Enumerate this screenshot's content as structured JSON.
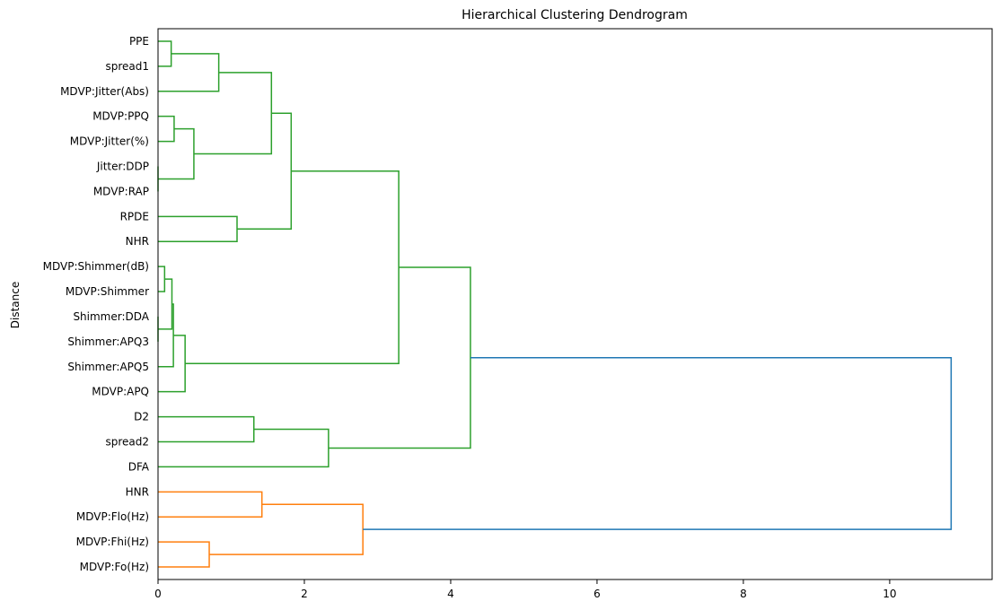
{
  "chart_data": {
    "type": "dendrogram",
    "title": "Hierarchical Clustering Dendrogram",
    "ylabel": "Distance",
    "xlabel": "",
    "orientation": "left",
    "xlim": [
      0,
      11.4
    ],
    "xticks": [
      0,
      2,
      4,
      6,
      8,
      10
    ],
    "colors": {
      "group1": "#2ca02c",
      "group2": "#ff7f0e",
      "root": "#1f77b4"
    },
    "leaves": [
      "PPE",
      "spread1",
      "MDVP:Jitter(Abs)",
      "MDVP:PPQ",
      "MDVP:Jitter(%)",
      "Jitter:DDP",
      "MDVP:RAP",
      "RPDE",
      "NHR",
      "MDVP:Shimmer(dB)",
      "MDVP:Shimmer",
      "Shimmer:DDA",
      "Shimmer:APQ3",
      "Shimmer:APQ5",
      "MDVP:APQ",
      "D2",
      "spread2",
      "DFA",
      "HNR",
      "MDVP:Flo(Hz)",
      "MDVP:Fhi(Hz)",
      "MDVP:Fo(Hz)"
    ],
    "merges": [
      {
        "a": 0,
        "b": 1,
        "distance": 0.18,
        "color": "group1"
      },
      {
        "a": 22,
        "b": 2,
        "distance": 0.83,
        "color": "group1"
      },
      {
        "a": 3,
        "b": 4,
        "distance": 0.22,
        "color": "group1"
      },
      {
        "a": 5,
        "b": 6,
        "distance": 0.0,
        "color": "group1"
      },
      {
        "a": 24,
        "b": 25,
        "distance": 0.49,
        "color": "group1"
      },
      {
        "a": 23,
        "b": 26,
        "distance": 1.55,
        "color": "group1"
      },
      {
        "a": 7,
        "b": 8,
        "distance": 1.08,
        "color": "group1"
      },
      {
        "a": 27,
        "b": 28,
        "distance": 1.82,
        "color": "group1"
      },
      {
        "a": 9,
        "b": 10,
        "distance": 0.09,
        "color": "group1"
      },
      {
        "a": 11,
        "b": 12,
        "distance": 0.0,
        "color": "group1"
      },
      {
        "a": 30,
        "b": 31,
        "distance": 0.19,
        "color": "group1"
      },
      {
        "a": 32,
        "b": 13,
        "distance": 0.21,
        "color": "group1"
      },
      {
        "a": 33,
        "b": 14,
        "distance": 0.37,
        "color": "group1"
      },
      {
        "a": 29,
        "b": 34,
        "distance": 3.29,
        "color": "group1"
      },
      {
        "a": 15,
        "b": 16,
        "distance": 1.31,
        "color": "group1"
      },
      {
        "a": 36,
        "b": 17,
        "distance": 2.33,
        "color": "group1"
      },
      {
        "a": 35,
        "b": 37,
        "distance": 4.27,
        "color": "group1"
      },
      {
        "a": 18,
        "b": 19,
        "distance": 1.42,
        "color": "group2"
      },
      {
        "a": 20,
        "b": 21,
        "distance": 0.7,
        "color": "group2"
      },
      {
        "a": 39,
        "b": 40,
        "distance": 2.8,
        "color": "group2"
      },
      {
        "a": 38,
        "b": 41,
        "distance": 10.84,
        "color": "root"
      }
    ]
  }
}
